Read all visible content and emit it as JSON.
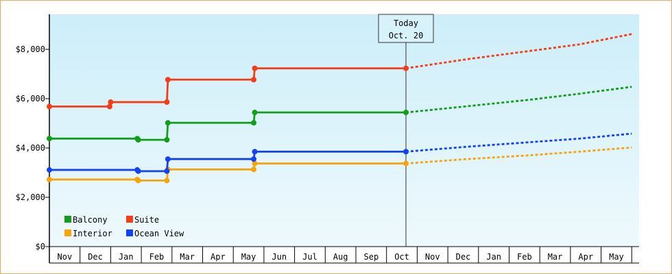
{
  "chart_data": {
    "type": "line",
    "step": true,
    "title": "",
    "xlabel": "",
    "ylabel": "",
    "ylim": [
      0,
      9500
    ],
    "y_ticks": [
      {
        "value": 0,
        "label": "$0"
      },
      {
        "value": 2000,
        "label": "$2,000"
      },
      {
        "value": 4000,
        "label": "$4,000"
      },
      {
        "value": 6000,
        "label": "$6,000"
      },
      {
        "value": 8000,
        "label": "$8,000"
      }
    ],
    "months": [
      "Nov",
      "Dec",
      "Jan",
      "Feb",
      "Mar",
      "Apr",
      "May",
      "Jun",
      "Jul",
      "Aug",
      "Sep",
      "Oct",
      "Nov",
      "Dec",
      "Jan",
      "Feb",
      "Mar",
      "Apr",
      "May"
    ],
    "x_start": "Nov 1",
    "today": {
      "line1": "Today",
      "line2": "Oct. 20",
      "date": "Oct 20"
    },
    "grid": false,
    "background": [
      "#cdeef9",
      "#eef9fd"
    ],
    "legend_position": "bottom-left",
    "series": [
      {
        "name": "Balcony",
        "color": "#139e1a",
        "points": [
          [
            "Nov 1",
            4380
          ],
          [
            "Jan 27",
            4380
          ],
          [
            "Jan 28",
            4330
          ],
          [
            "Feb 26",
            4330
          ],
          [
            "Feb 27",
            5020
          ],
          [
            "May 21",
            5020
          ],
          [
            "May 22",
            5440
          ],
          [
            "Oct 20",
            5440
          ]
        ],
        "forecast": [
          [
            "Oct 20",
            5440
          ],
          [
            "Dec 10",
            5650
          ],
          [
            "Feb 20",
            5950
          ],
          [
            "Apr 10",
            6200
          ],
          [
            "Jun 1",
            6480
          ]
        ]
      },
      {
        "name": "Suite",
        "color": "#f53c14",
        "points": [
          [
            "Nov 1",
            5680
          ],
          [
            "Dec 30",
            5680
          ],
          [
            "Dec 31",
            5860
          ],
          [
            "Feb 26",
            5860
          ],
          [
            "Feb 27",
            6770
          ],
          [
            "May 21",
            6770
          ],
          [
            "May 22",
            7230
          ],
          [
            "Oct 20",
            7230
          ]
        ],
        "forecast": [
          [
            "Oct 20",
            7230
          ],
          [
            "Dec 20",
            7600
          ],
          [
            "Feb 15",
            7900
          ],
          [
            "Apr 10",
            8200
          ],
          [
            "Jun 1",
            8620
          ]
        ]
      },
      {
        "name": "Interior",
        "color": "#f5a40a",
        "points": [
          [
            "Nov 1",
            2720
          ],
          [
            "Jan 27",
            2720
          ],
          [
            "Jan 28",
            2680
          ],
          [
            "Feb 26",
            2680
          ],
          [
            "Feb 27",
            3130
          ],
          [
            "May 21",
            3130
          ],
          [
            "May 22",
            3370
          ],
          [
            "Oct 20",
            3370
          ]
        ],
        "forecast": [
          [
            "Oct 20",
            3370
          ],
          [
            "Dec 20",
            3550
          ],
          [
            "Feb 20",
            3700
          ],
          [
            "Apr 10",
            3850
          ],
          [
            "Jun 1",
            4020
          ]
        ]
      },
      {
        "name": "Ocean View",
        "color": "#1442f0",
        "points": [
          [
            "Nov 1",
            3110
          ],
          [
            "Jan 27",
            3110
          ],
          [
            "Jan 28",
            3060
          ],
          [
            "Feb 26",
            3060
          ],
          [
            "Feb 27",
            3550
          ],
          [
            "May 21",
            3550
          ],
          [
            "May 22",
            3850
          ],
          [
            "Oct 20",
            3850
          ]
        ],
        "forecast": [
          [
            "Oct 20",
            3850
          ],
          [
            "Dec 20",
            4050
          ],
          [
            "Feb 20",
            4230
          ],
          [
            "Apr 10",
            4380
          ],
          [
            "Jun 1",
            4580
          ]
        ]
      }
    ],
    "legend_order": [
      "Balcony",
      "Suite",
      "Interior",
      "Ocean View"
    ]
  }
}
